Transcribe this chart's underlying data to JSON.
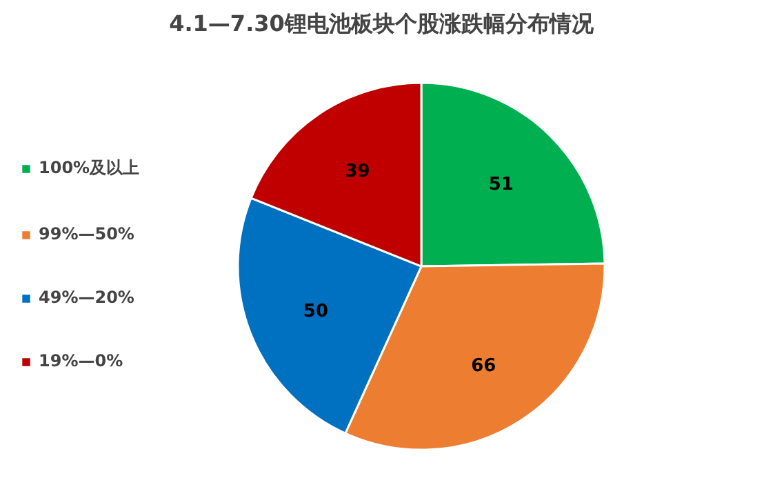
{
  "chart_data": {
    "type": "pie",
    "title": "4.1—7.30锂电池板块个股涨跌幅分布情况",
    "categories": [
      "100%及以上",
      "99%—50%",
      "49%—20%",
      "19%—0%"
    ],
    "values": [
      51,
      66,
      50,
      39
    ],
    "colors": [
      "#00b050",
      "#ed7d31",
      "#0070c0",
      "#c00000"
    ],
    "data_labels": true,
    "legend": "left"
  }
}
